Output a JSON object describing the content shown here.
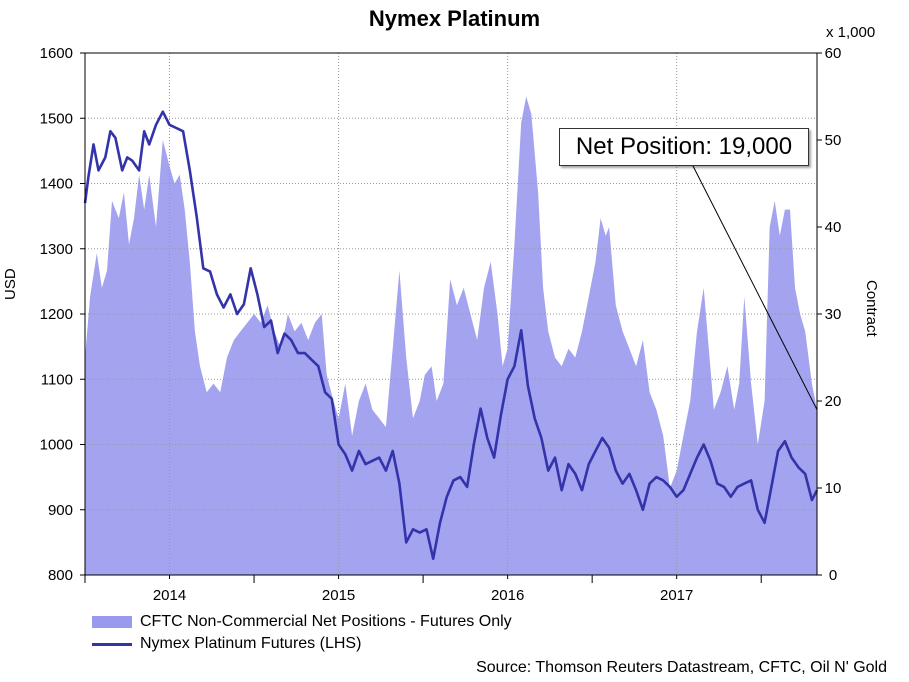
{
  "chart_data": {
    "type": "area+line",
    "title": "Nymex Platinum",
    "ylabel_left": "USD",
    "ylabel_right": "Contract",
    "right_unit": "x 1,000",
    "ylim_left": [
      800,
      1600
    ],
    "ylim_right": [
      0,
      60
    ],
    "left_ticks": [
      "800",
      "900",
      "1000",
      "1100",
      "1200",
      "1300",
      "1400",
      "1500",
      "1600"
    ],
    "right_ticks": [
      "0",
      "10",
      "20",
      "30",
      "40",
      "50",
      "60"
    ],
    "x_labels": [
      "2014",
      "2015",
      "2016",
      "2017"
    ],
    "x_range": [
      2013.5,
      2017.83
    ],
    "grid": true,
    "legend_position": "bottom-left",
    "callout": "Net Position: 19,000",
    "source": "Source: Thomson Reuters Datastream, CFTC, Oil N' Gold",
    "series": [
      {
        "name": "CFTC Non-Commercial Net Positions - Futures Only",
        "kind": "area",
        "axis": "right",
        "color": "#9999ee",
        "points": [
          [
            2013.5,
            25
          ],
          [
            2013.53,
            32
          ],
          [
            2013.57,
            37
          ],
          [
            2013.6,
            33
          ],
          [
            2013.63,
            35
          ],
          [
            2013.66,
            43
          ],
          [
            2013.7,
            41
          ],
          [
            2013.73,
            44
          ],
          [
            2013.76,
            38
          ],
          [
            2013.79,
            41
          ],
          [
            2013.82,
            46
          ],
          [
            2013.85,
            42
          ],
          [
            2013.88,
            46
          ],
          [
            2013.92,
            40
          ],
          [
            2013.96,
            50
          ],
          [
            2014.0,
            47
          ],
          [
            2014.03,
            45
          ],
          [
            2014.06,
            46
          ],
          [
            2014.09,
            42
          ],
          [
            2014.12,
            36
          ],
          [
            2014.15,
            28
          ],
          [
            2014.18,
            24
          ],
          [
            2014.22,
            21
          ],
          [
            2014.26,
            22
          ],
          [
            2014.3,
            21
          ],
          [
            2014.34,
            25
          ],
          [
            2014.38,
            27
          ],
          [
            2014.42,
            28
          ],
          [
            2014.46,
            29
          ],
          [
            2014.5,
            30
          ],
          [
            2014.54,
            29
          ],
          [
            2014.58,
            31
          ],
          [
            2014.62,
            28
          ],
          [
            2014.66,
            26
          ],
          [
            2014.7,
            30
          ],
          [
            2014.74,
            28
          ],
          [
            2014.78,
            29
          ],
          [
            2014.82,
            27
          ],
          [
            2014.86,
            29
          ],
          [
            2014.9,
            30
          ],
          [
            2014.93,
            23
          ],
          [
            2014.97,
            20
          ],
          [
            2015.0,
            18
          ],
          [
            2015.04,
            22
          ],
          [
            2015.08,
            16
          ],
          [
            2015.12,
            20
          ],
          [
            2015.16,
            22
          ],
          [
            2015.2,
            19
          ],
          [
            2015.24,
            18
          ],
          [
            2015.28,
            17
          ],
          [
            2015.32,
            26
          ],
          [
            2015.36,
            35
          ],
          [
            2015.4,
            25
          ],
          [
            2015.44,
            18
          ],
          [
            2015.48,
            20
          ],
          [
            2015.51,
            23
          ],
          [
            2015.55,
            24
          ],
          [
            2015.58,
            20
          ],
          [
            2015.62,
            22
          ],
          [
            2015.66,
            34
          ],
          [
            2015.7,
            31
          ],
          [
            2015.74,
            33
          ],
          [
            2015.78,
            30
          ],
          [
            2015.82,
            27
          ],
          [
            2015.86,
            33
          ],
          [
            2015.9,
            36
          ],
          [
            2015.94,
            30
          ],
          [
            2015.97,
            24
          ],
          [
            2016.0,
            26
          ],
          [
            2016.04,
            38
          ],
          [
            2016.08,
            52
          ],
          [
            2016.11,
            55
          ],
          [
            2016.14,
            53
          ],
          [
            2016.18,
            44
          ],
          [
            2016.21,
            33
          ],
          [
            2016.24,
            28
          ],
          [
            2016.28,
            25
          ],
          [
            2016.32,
            24
          ],
          [
            2016.36,
            26
          ],
          [
            2016.4,
            25
          ],
          [
            2016.44,
            28
          ],
          [
            2016.48,
            32
          ],
          [
            2016.52,
            36
          ],
          [
            2016.55,
            41
          ],
          [
            2016.58,
            39
          ],
          [
            2016.6,
            40
          ],
          [
            2016.64,
            31
          ],
          [
            2016.68,
            28
          ],
          [
            2016.72,
            26
          ],
          [
            2016.76,
            24
          ],
          [
            2016.8,
            27
          ],
          [
            2016.84,
            21
          ],
          [
            2016.88,
            19
          ],
          [
            2016.92,
            16
          ],
          [
            2016.96,
            10
          ],
          [
            2017.0,
            12
          ],
          [
            2017.04,
            16
          ],
          [
            2017.08,
            20
          ],
          [
            2017.12,
            28
          ],
          [
            2017.16,
            33
          ],
          [
            2017.19,
            26
          ],
          [
            2017.22,
            19
          ],
          [
            2017.26,
            21
          ],
          [
            2017.3,
            24
          ],
          [
            2017.34,
            19
          ],
          [
            2017.37,
            22
          ],
          [
            2017.4,
            32
          ],
          [
            2017.44,
            22
          ],
          [
            2017.48,
            15
          ],
          [
            2017.52,
            20
          ],
          [
            2017.55,
            40
          ],
          [
            2017.58,
            43
          ],
          [
            2017.61,
            39
          ],
          [
            2017.64,
            42
          ],
          [
            2017.67,
            42
          ],
          [
            2017.7,
            33
          ],
          [
            2017.73,
            30
          ],
          [
            2017.76,
            28
          ],
          [
            2017.8,
            22
          ],
          [
            2017.83,
            19
          ]
        ]
      },
      {
        "name": "Nymex Platinum Futures (LHS)",
        "kind": "line",
        "axis": "left",
        "color": "#3333aa",
        "points": [
          [
            2013.5,
            1370
          ],
          [
            2013.52,
            1410
          ],
          [
            2013.55,
            1460
          ],
          [
            2013.58,
            1420
          ],
          [
            2013.62,
            1440
          ],
          [
            2013.65,
            1480
          ],
          [
            2013.68,
            1470
          ],
          [
            2013.72,
            1420
          ],
          [
            2013.75,
            1440
          ],
          [
            2013.78,
            1435
          ],
          [
            2013.82,
            1420
          ],
          [
            2013.85,
            1480
          ],
          [
            2013.88,
            1460
          ],
          [
            2013.92,
            1490
          ],
          [
            2013.96,
            1510
          ],
          [
            2014.0,
            1490
          ],
          [
            2014.04,
            1485
          ],
          [
            2014.08,
            1480
          ],
          [
            2014.12,
            1420
          ],
          [
            2014.16,
            1350
          ],
          [
            2014.2,
            1270
          ],
          [
            2014.24,
            1265
          ],
          [
            2014.28,
            1230
          ],
          [
            2014.32,
            1210
          ],
          [
            2014.36,
            1230
          ],
          [
            2014.4,
            1200
          ],
          [
            2014.44,
            1215
          ],
          [
            2014.48,
            1270
          ],
          [
            2014.52,
            1230
          ],
          [
            2014.56,
            1180
          ],
          [
            2014.6,
            1190
          ],
          [
            2014.64,
            1140
          ],
          [
            2014.68,
            1170
          ],
          [
            2014.72,
            1160
          ],
          [
            2014.76,
            1140
          ],
          [
            2014.8,
            1140
          ],
          [
            2014.84,
            1130
          ],
          [
            2014.88,
            1120
          ],
          [
            2014.92,
            1080
          ],
          [
            2014.96,
            1070
          ],
          [
            2015.0,
            1000
          ],
          [
            2015.04,
            985
          ],
          [
            2015.08,
            960
          ],
          [
            2015.12,
            990
          ],
          [
            2015.16,
            970
          ],
          [
            2015.2,
            975
          ],
          [
            2015.24,
            980
          ],
          [
            2015.28,
            960
          ],
          [
            2015.32,
            990
          ],
          [
            2015.36,
            940
          ],
          [
            2015.4,
            850
          ],
          [
            2015.44,
            870
          ],
          [
            2015.48,
            865
          ],
          [
            2015.52,
            870
          ],
          [
            2015.56,
            825
          ],
          [
            2015.6,
            880
          ],
          [
            2015.64,
            920
          ],
          [
            2015.68,
            945
          ],
          [
            2015.72,
            950
          ],
          [
            2015.76,
            935
          ],
          [
            2015.8,
            1000
          ],
          [
            2015.84,
            1055
          ],
          [
            2015.88,
            1010
          ],
          [
            2015.92,
            980
          ],
          [
            2015.96,
            1045
          ],
          [
            2016.0,
            1100
          ],
          [
            2016.04,
            1120
          ],
          [
            2016.08,
            1175
          ],
          [
            2016.12,
            1090
          ],
          [
            2016.16,
            1040
          ],
          [
            2016.2,
            1010
          ],
          [
            2016.24,
            960
          ],
          [
            2016.28,
            980
          ],
          [
            2016.32,
            930
          ],
          [
            2016.36,
            970
          ],
          [
            2016.4,
            955
          ],
          [
            2016.44,
            930
          ],
          [
            2016.48,
            970
          ],
          [
            2016.52,
            990
          ],
          [
            2016.56,
            1010
          ],
          [
            2016.6,
            995
          ],
          [
            2016.64,
            960
          ],
          [
            2016.68,
            940
          ],
          [
            2016.72,
            955
          ],
          [
            2016.76,
            930
          ],
          [
            2016.8,
            900
          ],
          [
            2016.84,
            940
          ],
          [
            2016.88,
            950
          ],
          [
            2016.92,
            945
          ],
          [
            2016.96,
            935
          ],
          [
            2017.0,
            920
          ],
          [
            2017.04,
            930
          ],
          [
            2017.08,
            955
          ],
          [
            2017.12,
            980
          ],
          [
            2017.16,
            1000
          ],
          [
            2017.2,
            975
          ],
          [
            2017.24,
            940
          ],
          [
            2017.28,
            935
          ],
          [
            2017.32,
            920
          ],
          [
            2017.36,
            935
          ],
          [
            2017.4,
            940
          ],
          [
            2017.44,
            945
          ],
          [
            2017.48,
            900
          ],
          [
            2017.52,
            880
          ],
          [
            2017.56,
            935
          ],
          [
            2017.6,
            990
          ],
          [
            2017.64,
            1005
          ],
          [
            2017.68,
            980
          ],
          [
            2017.72,
            965
          ],
          [
            2017.76,
            955
          ],
          [
            2017.8,
            915
          ],
          [
            2017.83,
            930
          ]
        ]
      }
    ]
  }
}
